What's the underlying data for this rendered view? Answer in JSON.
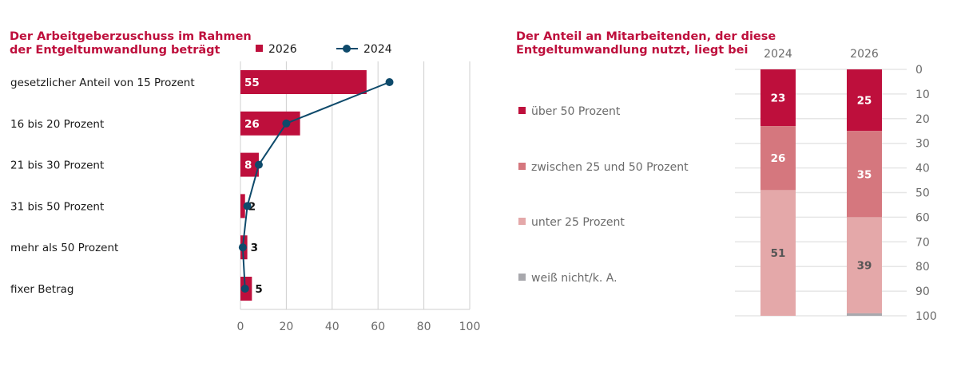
{
  "chart_data": [
    {
      "type": "bar",
      "orientation": "horizontal",
      "title": "Der Arbeitgeberzuschuss im Rahmen\nder Entgeltumwandlung beträgt",
      "categories": [
        "gesetzlicher Anteil von 15 Prozent",
        "16 bis 20 Prozent",
        "21 bis 30 Prozent",
        "31 bis 50 Prozent",
        "mehr als 50 Prozent",
        "fixer Betrag"
      ],
      "series": [
        {
          "name": "2026",
          "type": "bar",
          "color": "#be0f3c",
          "values": [
            55,
            26,
            8,
            2,
            3,
            5
          ]
        },
        {
          "name": "2024",
          "type": "line",
          "color": "#0e4a6b",
          "values": [
            65,
            20,
            8,
            3,
            1,
            2
          ]
        }
      ],
      "xlim": [
        0,
        100
      ],
      "xticks": [
        0,
        20,
        40,
        60,
        80,
        100
      ],
      "grid": true,
      "legend": "top"
    },
    {
      "type": "bar",
      "stacked": true,
      "title": "Der Anteil an Mitarbeitenden, der diese\nEntgeltumwandlung nutzt, liegt bei",
      "categories": [
        "2024",
        "2026"
      ],
      "series": [
        {
          "name": "über 50 Prozent",
          "color": "#be0f3c",
          "values": [
            23,
            25
          ],
          "label_color": "#ffffff"
        },
        {
          "name": "zwischen 25 und 50 Prozent",
          "color": "#d5777e",
          "values": [
            26,
            35
          ],
          "label_color": "#ffffff"
        },
        {
          "name": "unter 25 Prozent",
          "color": "#e4a8a9",
          "values": [
            51,
            39
          ],
          "label_color": "#555555"
        },
        {
          "name": "weiß nicht/k. A.",
          "color": "#a8a8ad",
          "values": [
            0,
            1
          ],
          "label_color": "#555555"
        }
      ],
      "ylim": [
        0,
        100
      ],
      "yticks": [
        0,
        10,
        20,
        30,
        40,
        50,
        60,
        70,
        80,
        90,
        100
      ],
      "y_inverted": true,
      "grid": true,
      "legend": "left"
    }
  ]
}
